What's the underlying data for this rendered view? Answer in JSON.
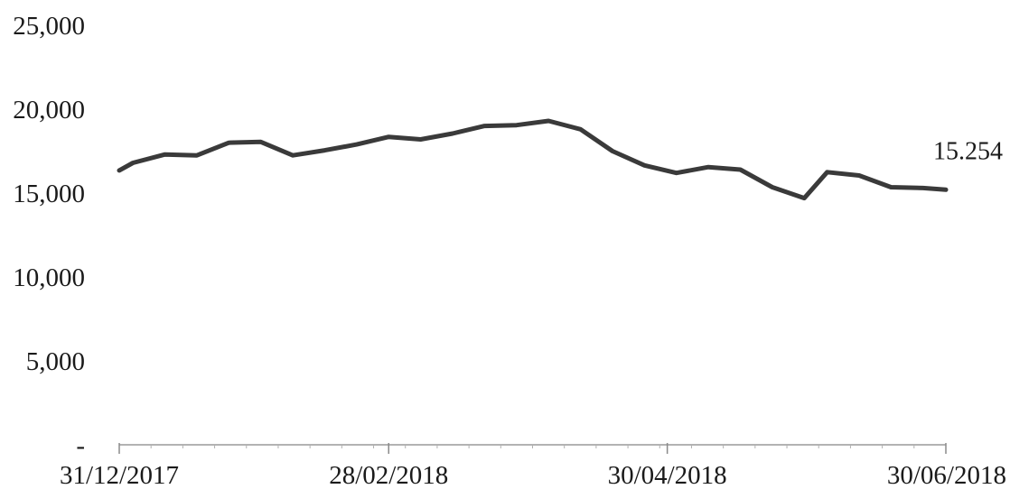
{
  "chart_data": {
    "type": "line",
    "title": "",
    "xlabel": "",
    "ylabel": "",
    "ylim": [
      0,
      25000
    ],
    "grid": false,
    "y_ticks": [
      {
        "value": 0,
        "label": "-"
      },
      {
        "value": 5000,
        "label": "5,000"
      },
      {
        "value": 10000,
        "label": "10,000"
      },
      {
        "value": 15000,
        "label": "15,000"
      },
      {
        "value": 20000,
        "label": "20,000"
      },
      {
        "value": 25000,
        "label": "25,000"
      }
    ],
    "x_range": [
      "2017-12-31",
      "2018-06-30"
    ],
    "x_ticks": [
      {
        "date": "2017-12-31",
        "label": "31/12/2017"
      },
      {
        "date": "2018-02-28",
        "label": "28/02/2018"
      },
      {
        "date": "2018-04-30",
        "label": "30/04/2018"
      },
      {
        "date": "2018-06-30",
        "label": "30/06/2018"
      }
    ],
    "series": [
      {
        "color": "#3a3a3a",
        "points": [
          {
            "x": "2017-12-31",
            "y": 16350
          },
          {
            "x": "2018-01-03",
            "y": 16800
          },
          {
            "x": "2018-01-10",
            "y": 17300
          },
          {
            "x": "2018-01-17",
            "y": 17250
          },
          {
            "x": "2018-01-24",
            "y": 18000
          },
          {
            "x": "2018-01-31",
            "y": 18050
          },
          {
            "x": "2018-02-07",
            "y": 17250
          },
          {
            "x": "2018-02-14",
            "y": 17550
          },
          {
            "x": "2018-02-21",
            "y": 17900
          },
          {
            "x": "2018-02-28",
            "y": 18350
          },
          {
            "x": "2018-03-07",
            "y": 18200
          },
          {
            "x": "2018-03-14",
            "y": 18550
          },
          {
            "x": "2018-03-21",
            "y": 19000
          },
          {
            "x": "2018-03-28",
            "y": 19050
          },
          {
            "x": "2018-04-04",
            "y": 19300
          },
          {
            "x": "2018-04-11",
            "y": 18800
          },
          {
            "x": "2018-04-18",
            "y": 17500
          },
          {
            "x": "2018-04-25",
            "y": 16650
          },
          {
            "x": "2018-05-02",
            "y": 16200
          },
          {
            "x": "2018-05-09",
            "y": 16550
          },
          {
            "x": "2018-05-16",
            "y": 16400
          },
          {
            "x": "2018-05-23",
            "y": 15350
          },
          {
            "x": "2018-05-30",
            "y": 14700
          },
          {
            "x": "2018-06-04",
            "y": 16250
          },
          {
            "x": "2018-06-11",
            "y": 16050
          },
          {
            "x": "2018-06-18",
            "y": 15350
          },
          {
            "x": "2018-06-25",
            "y": 15300
          },
          {
            "x": "2018-06-30",
            "y": 15200
          }
        ]
      }
    ],
    "annotations": [
      {
        "text": "15.254",
        "x": "2018-06-30",
        "y": 15254
      }
    ]
  }
}
